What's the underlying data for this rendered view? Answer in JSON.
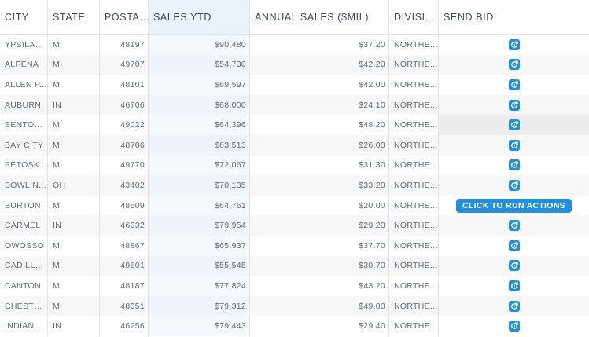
{
  "header": {
    "city": "CITY",
    "state": "STATE",
    "postal": "POSTA...",
    "sales_ytd": "SALES YTD",
    "annual_sales": "ANNUAL SALES ($MIL)",
    "division": "DIVISI...",
    "send_bid": "SEND BID"
  },
  "tooltip": "CLICK TO RUN ACTIONS",
  "rows": [
    {
      "city": "YPSILAN...",
      "state": "MI",
      "postal": "48197",
      "sales": "$90,480",
      "annual": "$37.20",
      "division": "NORTHE..."
    },
    {
      "city": "ALPENA",
      "state": "MI",
      "postal": "49707",
      "sales": "$54,730",
      "annual": "$42.20",
      "division": "NORTHE..."
    },
    {
      "city": "ALLEN P...",
      "state": "MI",
      "postal": "48101",
      "sales": "$69,597",
      "annual": "$42.00",
      "division": "NORTHE..."
    },
    {
      "city": "AUBURN",
      "state": "IN",
      "postal": "46706",
      "sales": "$68,000",
      "annual": "$24.10",
      "division": "NORTHE..."
    },
    {
      "city": "BENTON...",
      "state": "MI",
      "postal": "49022",
      "sales": "$64,396",
      "annual": "$48.20",
      "division": "NORTHE..."
    },
    {
      "city": "BAY CITY",
      "state": "MI",
      "postal": "48706",
      "sales": "$63,513",
      "annual": "$26.00",
      "division": "NORTHE..."
    },
    {
      "city": "PETOSK...",
      "state": "MI",
      "postal": "49770",
      "sales": "$72,067",
      "annual": "$31.30",
      "division": "NORTHE..."
    },
    {
      "city": "BOWLIN...",
      "state": "OH",
      "postal": "43402",
      "sales": "$70,135",
      "annual": "$33.20",
      "division": "NORTHE..."
    },
    {
      "city": "BURTON",
      "state": "MI",
      "postal": "48509",
      "sales": "$64,761",
      "annual": "$20.00",
      "division": "NORTHE..."
    },
    {
      "city": "CARMEL",
      "state": "IN",
      "postal": "46032",
      "sales": "$79,954",
      "annual": "$29.20",
      "division": "NORTHE..."
    },
    {
      "city": "OWOSSO",
      "state": "MI",
      "postal": "48867",
      "sales": "$65,937",
      "annual": "$37.70",
      "division": "NORTHE..."
    },
    {
      "city": "CADILLA...",
      "state": "MI",
      "postal": "49601",
      "sales": "$55,545",
      "annual": "$30.70",
      "division": "NORTHE..."
    },
    {
      "city": "CANTON",
      "state": "MI",
      "postal": "48187",
      "sales": "$77,824",
      "annual": "$43.20",
      "division": "NORTHE..."
    },
    {
      "city": "CHESTE...",
      "state": "MI",
      "postal": "48051",
      "sales": "$79,312",
      "annual": "$49.00",
      "division": "NORTHE..."
    },
    {
      "city": "INDIANA...",
      "state": "IN",
      "postal": "46256",
      "sales": "$79,443",
      "annual": "$29.40",
      "division": "NORTHE..."
    }
  ],
  "icons": {
    "action": "run-action-icon"
  },
  "colors": {
    "accent": "#1f8fe3",
    "selected_column": "#e9f3fc"
  }
}
